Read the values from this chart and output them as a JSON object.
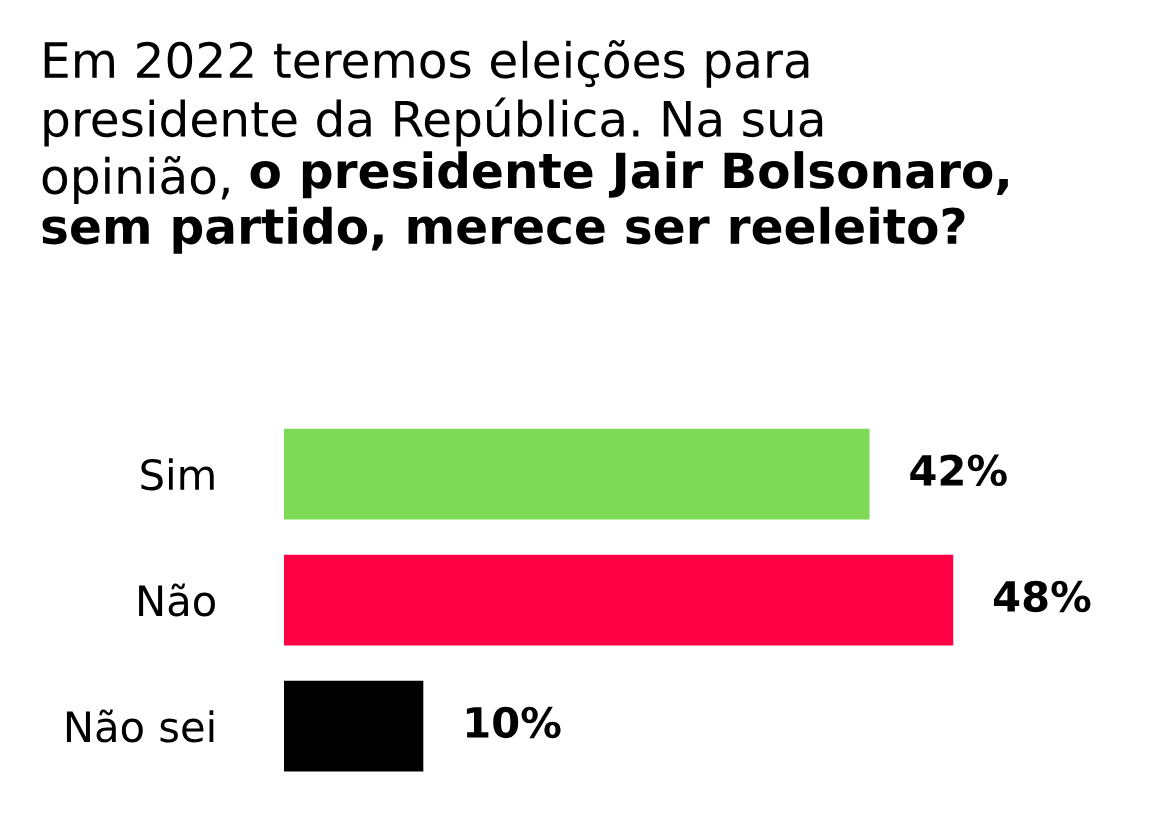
{
  "chart_data": {
    "type": "bar",
    "orientation": "horizontal",
    "title": "Em 2022 teremos eleições para\npresidente da República. Na sua\nopinião,",
    "subtitle": "o presidente Jair Bolsonaro,\nsem partido, merece ser reeleito?",
    "categories": [
      "Sim",
      "Não",
      "Não sei"
    ],
    "values": [
      42,
      48,
      10
    ],
    "colors": [
      "#7ed957",
      "#ff0044",
      "#000000"
    ],
    "value_labels": [
      "42%",
      "48%",
      "10%"
    ],
    "grid": false,
    "legend": false
  }
}
